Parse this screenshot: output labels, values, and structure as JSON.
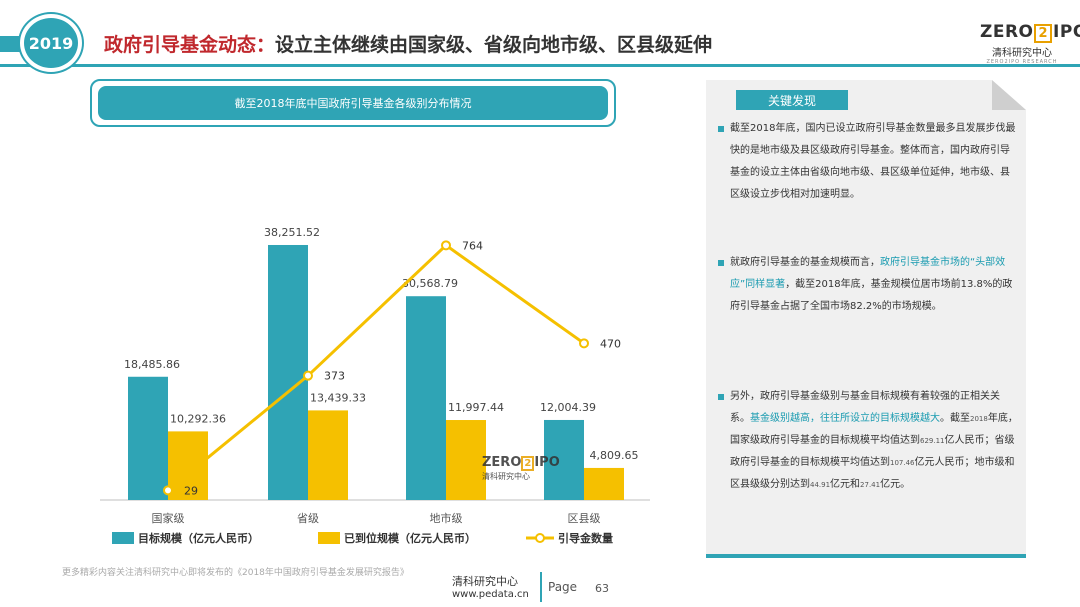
{
  "header": {
    "year": "2019",
    "title_red": "政府引导基金动态：",
    "title_rest": "设立主体继续由国家级、省级向地市级、区县级延伸",
    "logo_left": "ZERO",
    "logo_mid": "2",
    "logo_right": "IPO",
    "logo_sub": "清科研究中心",
    "logo_sub2": "ZERO2IPO RESEARCH"
  },
  "chart_header": "截至2018年底中国政府引导基金各级别分布情况",
  "chart_data": {
    "type": "bar",
    "categories": [
      "国家级",
      "省级",
      "地市级",
      "区县级"
    ],
    "series": [
      {
        "name": "目标规模（亿元人民币）",
        "kind": "bar",
        "values": [
          18485.86,
          38251.52,
          30568.79,
          12004.39
        ],
        "labels": [
          "18,485.86",
          "38,251.52",
          "30,568.79",
          "12,004.39"
        ]
      },
      {
        "name": "已到位规模（亿元人民币）",
        "kind": "bar",
        "values": [
          10292.36,
          13439.33,
          11997.44,
          4809.65
        ],
        "labels": [
          "10,292.36",
          "13,439.33",
          "11,997.44",
          "4,809.65"
        ]
      },
      {
        "name": "引导金数量",
        "kind": "line",
        "values": [
          29,
          373,
          764,
          470
        ],
        "labels": [
          "29",
          "373",
          "764",
          "470"
        ]
      }
    ],
    "title": "",
    "xlabel": "",
    "ylabel": "",
    "ylim": [
      0,
      45000
    ],
    "y2lim": [
      0,
      900
    ],
    "colors": {
      "bar1": "#2fa4b5",
      "bar2": "#f5c000",
      "line": "#f5c000"
    },
    "legend_position": "bottom",
    "grid": false
  },
  "watermark": {
    "left": "ZERO",
    "mid": "2",
    "right": "IPO",
    "sub": "清科研究中心"
  },
  "panel": {
    "tag": "关键发现",
    "findings": [
      {
        "parts": [
          {
            "t": "截至2018年底，国内已设立政府引导基金数量最多且发展步伐最快的是地市级及县区级政府引导基金。整体而言，国内政府引导基金的设立主体由省级向地市级、县区级单位延伸，地市级、县区级设立步伐相对加速明显。",
            "hl": false
          }
        ]
      },
      {
        "parts": [
          {
            "t": "就政府引导基金的基金规模而言，",
            "hl": false
          },
          {
            "t": "政府引导基金市场的“头部效应”同样显著",
            "hl": true
          },
          {
            "t": "，截至2018年底，基金规模位居市场前13.8%的政府引导基金占据了全国市场82.2%的市场规模。",
            "hl": false
          }
        ]
      },
      {
        "parts": [
          {
            "t": "另外，政府引导基金级别与基金目标规模有着较强的正相关关系。",
            "hl": false
          },
          {
            "t": "基金级别越高，往往所设立的目标规模越大",
            "hl": true
          },
          {
            "t": "。截至",
            "hl": false
          },
          {
            "t": "2018",
            "sm": true
          },
          {
            "t": "年底，国家级政府引导基金的目标规模平均值达到",
            "hl": false
          },
          {
            "t": "629.11",
            "sm": true
          },
          {
            "t": "亿人民币；省级政府引导基金的目标规模平均值达到",
            "hl": false
          },
          {
            "t": "107.46",
            "sm": true
          },
          {
            "t": "亿元人民币；地市级和区县级级分别达到",
            "hl": false
          },
          {
            "t": "44.91",
            "sm": true
          },
          {
            "t": "亿元和",
            "hl": false
          },
          {
            "t": "27.41",
            "sm": true
          },
          {
            "t": "亿元。",
            "hl": false
          }
        ]
      }
    ]
  },
  "footer": {
    "note": "更多精彩内容关注清科研究中心即将发布的《2018年中国政府引导基金发展研究报告》",
    "org": "清科研究中心",
    "url": "www.pedata.cn",
    "page_label": "Page",
    "page_num": "63"
  }
}
